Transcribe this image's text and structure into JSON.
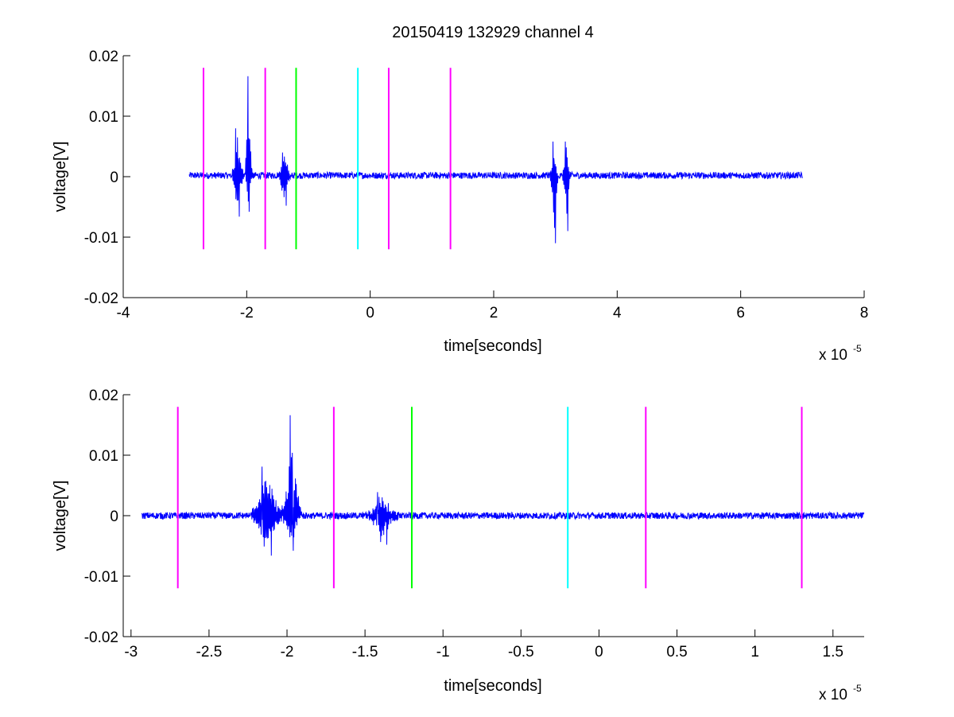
{
  "chart_data": [
    {
      "type": "line",
      "title": "20150419 132929 channel 4",
      "xlabel": "time[seconds]",
      "ylabel": "voltage[V]",
      "x_multiplier_label": "x 10",
      "x_multiplier_exponent": "-5",
      "xlim": [
        -4,
        8
      ],
      "ylim": [
        -0.02,
        0.02
      ],
      "xticks": [
        -4,
        -2,
        0,
        2,
        4,
        6,
        8
      ],
      "xtick_labels": [
        "-4",
        "-2",
        "0",
        "2",
        "4",
        "6",
        "8"
      ],
      "yticks": [
        0.02,
        0.01,
        0,
        -0.01,
        -0.02
      ],
      "ytick_labels": [
        "0.02",
        "0.01",
        "0",
        "-0.01",
        "-0.02"
      ],
      "grid": false,
      "series": [
        {
          "color": "#0000ff",
          "x_range": [
            -2.93,
            7.0
          ],
          "baseline": 0.0002,
          "bursts": [
            {
              "x": [
                -2.18,
                -2.12
              ],
              "ymax": 0.008,
              "ymin": -0.0066
            },
            {
              "x": [
                -1.98,
                -1.96
              ],
              "ymax": 0.0166,
              "ymin": -0.0058
            },
            {
              "x": [
                -1.42,
                -1.36
              ],
              "ymax": 0.004,
              "ymin": -0.0048
            },
            {
              "x": [
                2.96,
                3.0
              ],
              "ymax": 0.0058,
              "ymin": -0.011
            },
            {
              "x": [
                3.16,
                3.2
              ],
              "ymax": 0.0058,
              "ymin": -0.009
            }
          ]
        }
      ],
      "markers": [
        {
          "x": -2.7,
          "color": "#ff00ff",
          "ymin": -0.012,
          "ymax": 0.018
        },
        {
          "x": -1.7,
          "color": "#ff00ff",
          "ymin": -0.012,
          "ymax": 0.018
        },
        {
          "x": -1.2,
          "color": "#00ff00",
          "ymin": -0.012,
          "ymax": 0.018
        },
        {
          "x": -0.2,
          "color": "#00ffff",
          "ymin": -0.012,
          "ymax": 0.018
        },
        {
          "x": 0.3,
          "color": "#ff00ff",
          "ymin": -0.012,
          "ymax": 0.018
        },
        {
          "x": 1.3,
          "color": "#ff00ff",
          "ymin": -0.012,
          "ymax": 0.018
        }
      ]
    },
    {
      "type": "line",
      "title": "",
      "xlabel": "time[seconds]",
      "ylabel": "voltage[V]",
      "x_multiplier_label": "x 10",
      "x_multiplier_exponent": "-5",
      "xlim": [
        -3.05,
        1.7
      ],
      "ylim": [
        -0.02,
        0.02
      ],
      "xticks": [
        -3,
        -2.5,
        -2,
        -1.5,
        -1,
        -0.5,
        0,
        0.5,
        1,
        1.5
      ],
      "xtick_labels": [
        "-3",
        "-2.5",
        "-2",
        "-1.5",
        "-1",
        "-0.5",
        "0",
        "0.5",
        "1",
        "1.5"
      ],
      "yticks": [
        0.02,
        0.01,
        0,
        -0.01,
        -0.02
      ],
      "ytick_labels": [
        "0.02",
        "0.01",
        "0",
        "-0.01",
        "-0.02"
      ],
      "grid": false,
      "series": [
        {
          "color": "#0000ff",
          "x_range": [
            -2.93,
            1.7
          ],
          "baseline": 0.0,
          "bursts": [
            {
              "x": [
                -2.16,
                -2.1
              ],
              "ymax": 0.0081,
              "ymin": -0.0066
            },
            {
              "x": [
                -1.98,
                -1.96
              ],
              "ymax": 0.0166,
              "ymin": -0.0058
            },
            {
              "x": [
                -1.42,
                -1.36
              ],
              "ymax": 0.0039,
              "ymin": -0.0048
            }
          ]
        }
      ],
      "markers": [
        {
          "x": -2.7,
          "color": "#ff00ff",
          "ymin": -0.012,
          "ymax": 0.018
        },
        {
          "x": -1.7,
          "color": "#ff00ff",
          "ymin": -0.012,
          "ymax": 0.018
        },
        {
          "x": -1.2,
          "color": "#00ff00",
          "ymin": -0.012,
          "ymax": 0.018
        },
        {
          "x": -0.2,
          "color": "#00ffff",
          "ymin": -0.012,
          "ymax": 0.018
        },
        {
          "x": 0.3,
          "color": "#ff00ff",
          "ymin": -0.012,
          "ymax": 0.018
        },
        {
          "x": 1.3,
          "color": "#ff00ff",
          "ymin": -0.012,
          "ymax": 0.018
        }
      ]
    }
  ]
}
